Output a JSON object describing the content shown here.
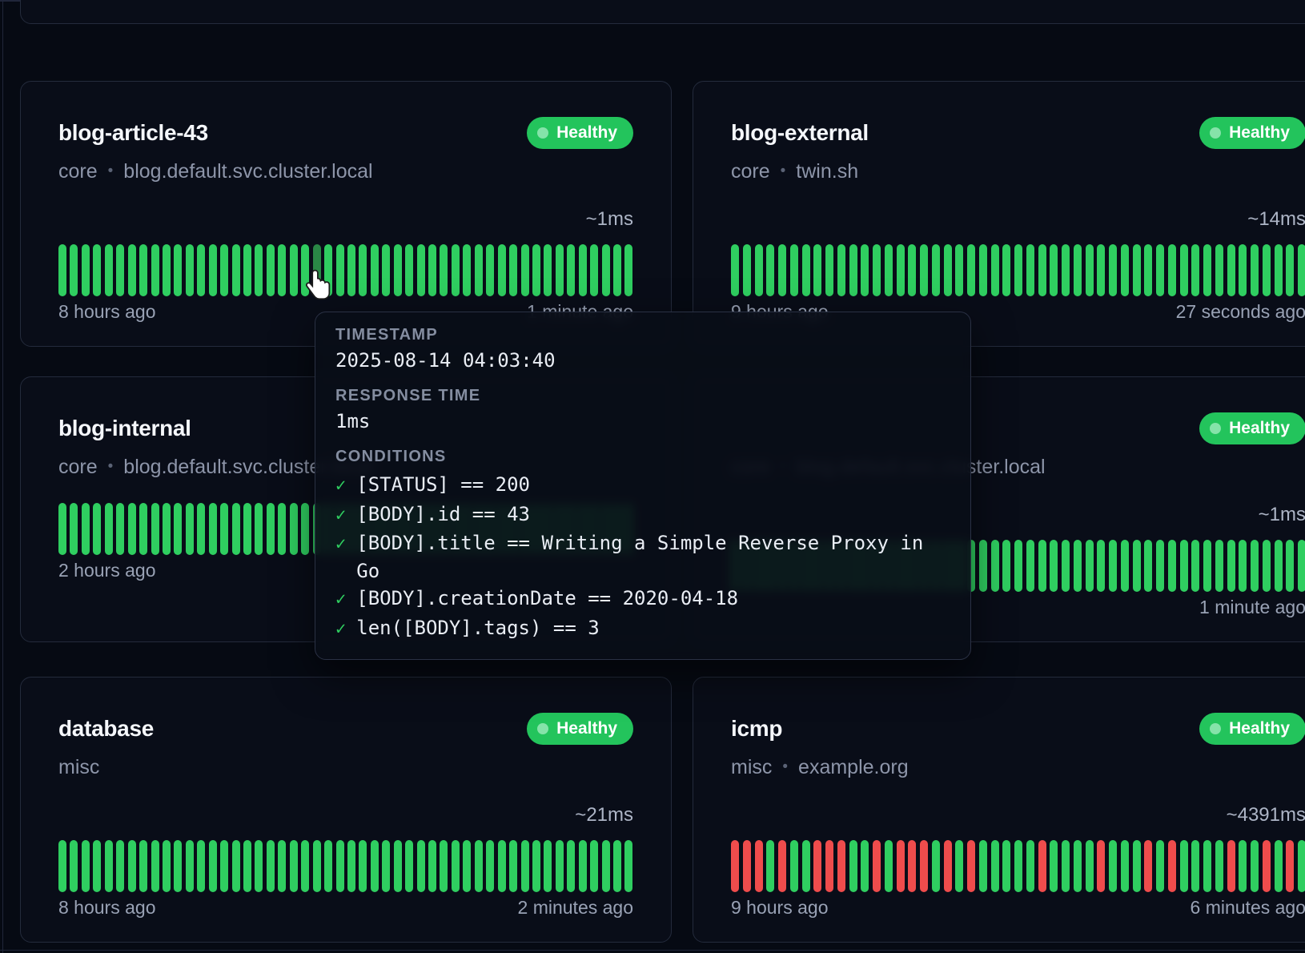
{
  "meta_separator": "•",
  "check_glyph": "✓",
  "colors": {
    "healthy_badge": "#23c45c",
    "badge_dot": "#85e3a9",
    "bar_up": "#2fce60",
    "bar_down": "#ef4c4c",
    "bar_hovered": "#2a8746"
  },
  "tooltip": {
    "timestamp_label": "TIMESTAMP",
    "timestamp": "2025-08-14 04:03:40",
    "response_label": "RESPONSE TIME",
    "response_time": "1ms",
    "conditions_label": "CONDITIONS",
    "conditions": [
      "[STATUS] == 200",
      "[BODY].id == 43",
      "[BODY].title == Writing a Simple Reverse Proxy in Go",
      "[BODY].creationDate == 2020-04-18",
      "len([BODY].tags) == 3"
    ]
  },
  "cards": [
    {
      "title": "blog-article-43",
      "group": "core",
      "host": "blog.default.svc.cluster.local",
      "status": "Healthy",
      "response": "~1ms",
      "footer_left": "8 hours ago",
      "footer_right": "1 minute ago",
      "hovered_bar_index": 22,
      "bars": "gggggggggggggggggggggggggggggggggggggggggggggggggg"
    },
    {
      "title": "blog-external",
      "group": "core",
      "host": "twin.sh",
      "status": "Healthy",
      "response": "~14ms",
      "footer_left": "9 hours ago",
      "footer_right": "27 seconds ago",
      "hovered_bar_index": -1,
      "bars": "ggggggggggggggggggggggggggggggggggggggggggggggggg"
    },
    {
      "title": "blog-internal",
      "group": "core",
      "host": "blog.default.svc.cluster.local",
      "status": "",
      "response": "",
      "footer_left": "2 hours ago",
      "footer_right": "",
      "hovered_bar_index": -1,
      "bars": "gggggggggggggggggggggggggggggggggggggggggggggggggg"
    },
    {
      "title": "",
      "group": "core",
      "host": "blog.default.svc.cluster.local",
      "status": "Healthy",
      "response": "~1ms",
      "footer_left": "",
      "footer_right": "1 minute ago",
      "hovered_bar_index": -1,
      "bars": "ggggggggggggggggggggggggggggggggggggggggggggggggg"
    },
    {
      "title": "database",
      "group": "misc",
      "host": "",
      "status": "Healthy",
      "response": "~21ms",
      "footer_left": "8 hours ago",
      "footer_right": "2 minutes ago",
      "hovered_bar_index": -1,
      "bars": "gggggggggggggggggggggggggggggggggggggggggggggggggg"
    },
    {
      "title": "icmp",
      "group": "misc",
      "host": "example.org",
      "status": "Healthy",
      "response": "~4391ms",
      "footer_left": "9 hours ago",
      "footer_right": "6 minutes ago",
      "hovered_bar_index": -1,
      "bars": "rrrgrggrrrggrgrrrgrgrgggggrggggrgggrgrggggrggrgrg"
    }
  ]
}
